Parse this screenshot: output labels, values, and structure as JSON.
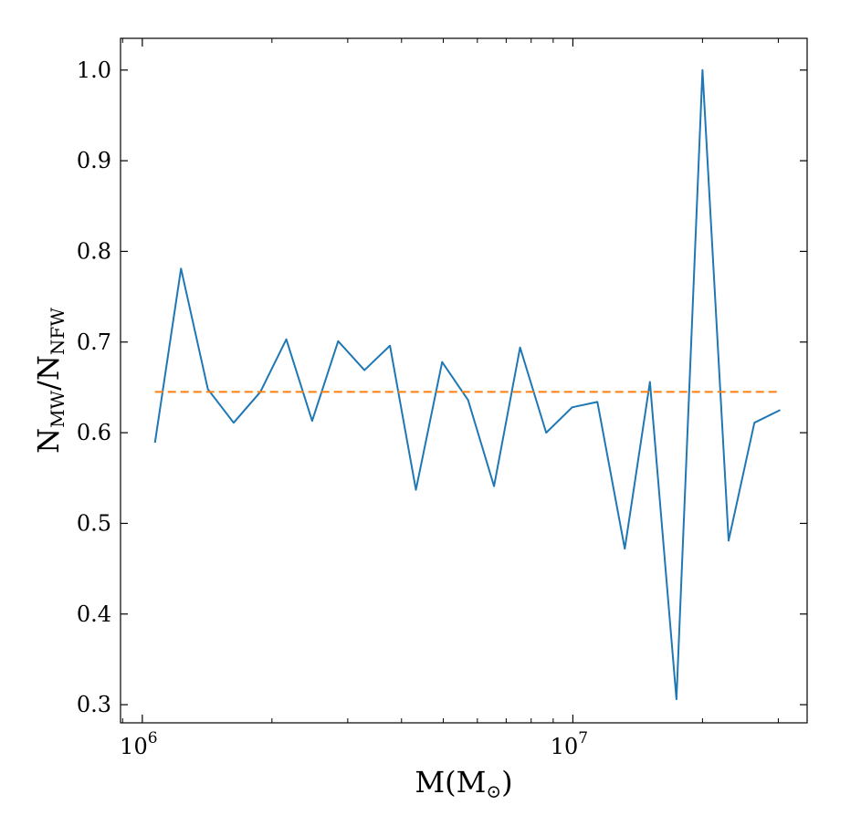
{
  "chart_data": {
    "type": "line",
    "title": "",
    "xlabel": {
      "base": "M(M",
      "sub": "⊙",
      "close": ")"
    },
    "ylabel": {
      "n1": "N",
      "s1": "MW",
      "slash": "/N",
      "s2": "NFW"
    },
    "xscale": "log",
    "xlim": [
      890000,
      35000000
    ],
    "ylim": [
      0.28,
      1.035
    ],
    "xticks": [
      {
        "value": 1000000,
        "base": "10",
        "exp": "6"
      },
      {
        "value": 10000000,
        "base": "10",
        "exp": "7"
      }
    ],
    "yticks": [
      {
        "value": 0.3,
        "label": "0.3"
      },
      {
        "value": 0.4,
        "label": "0.4"
      },
      {
        "value": 0.5,
        "label": "0.5"
      },
      {
        "value": 0.6,
        "label": "0.6"
      },
      {
        "value": 0.7,
        "label": "0.7"
      },
      {
        "value": 0.8,
        "label": "0.8"
      },
      {
        "value": 0.9,
        "label": "0.9"
      },
      {
        "value": 1.0,
        "label": "1.0"
      }
    ],
    "grid": false,
    "series": [
      {
        "color": "#1f77b4",
        "style": "solid",
        "x": [
          1070000,
          1230000,
          1420000,
          1630000,
          1880000,
          2160000,
          2480000,
          2850000,
          3280000,
          3760000,
          4320000,
          4970000,
          5710000,
          6560000,
          7540000,
          8670000,
          9960000,
          11400000,
          13200000,
          15100000,
          17400000,
          20000000,
          23000000,
          26400000,
          30300000
        ],
        "y": [
          0.589,
          0.781,
          0.648,
          0.611,
          0.645,
          0.703,
          0.613,
          0.701,
          0.669,
          0.696,
          0.537,
          0.678,
          0.636,
          0.541,
          0.694,
          0.6,
          0.628,
          0.634,
          0.472,
          0.656,
          0.306,
          1.0,
          0.481,
          0.611,
          0.625
        ]
      },
      {
        "color": "#ff7f0e",
        "style": "dashed",
        "x": [
          1070000,
          30300000
        ],
        "y": [
          0.645,
          0.645
        ]
      }
    ]
  }
}
